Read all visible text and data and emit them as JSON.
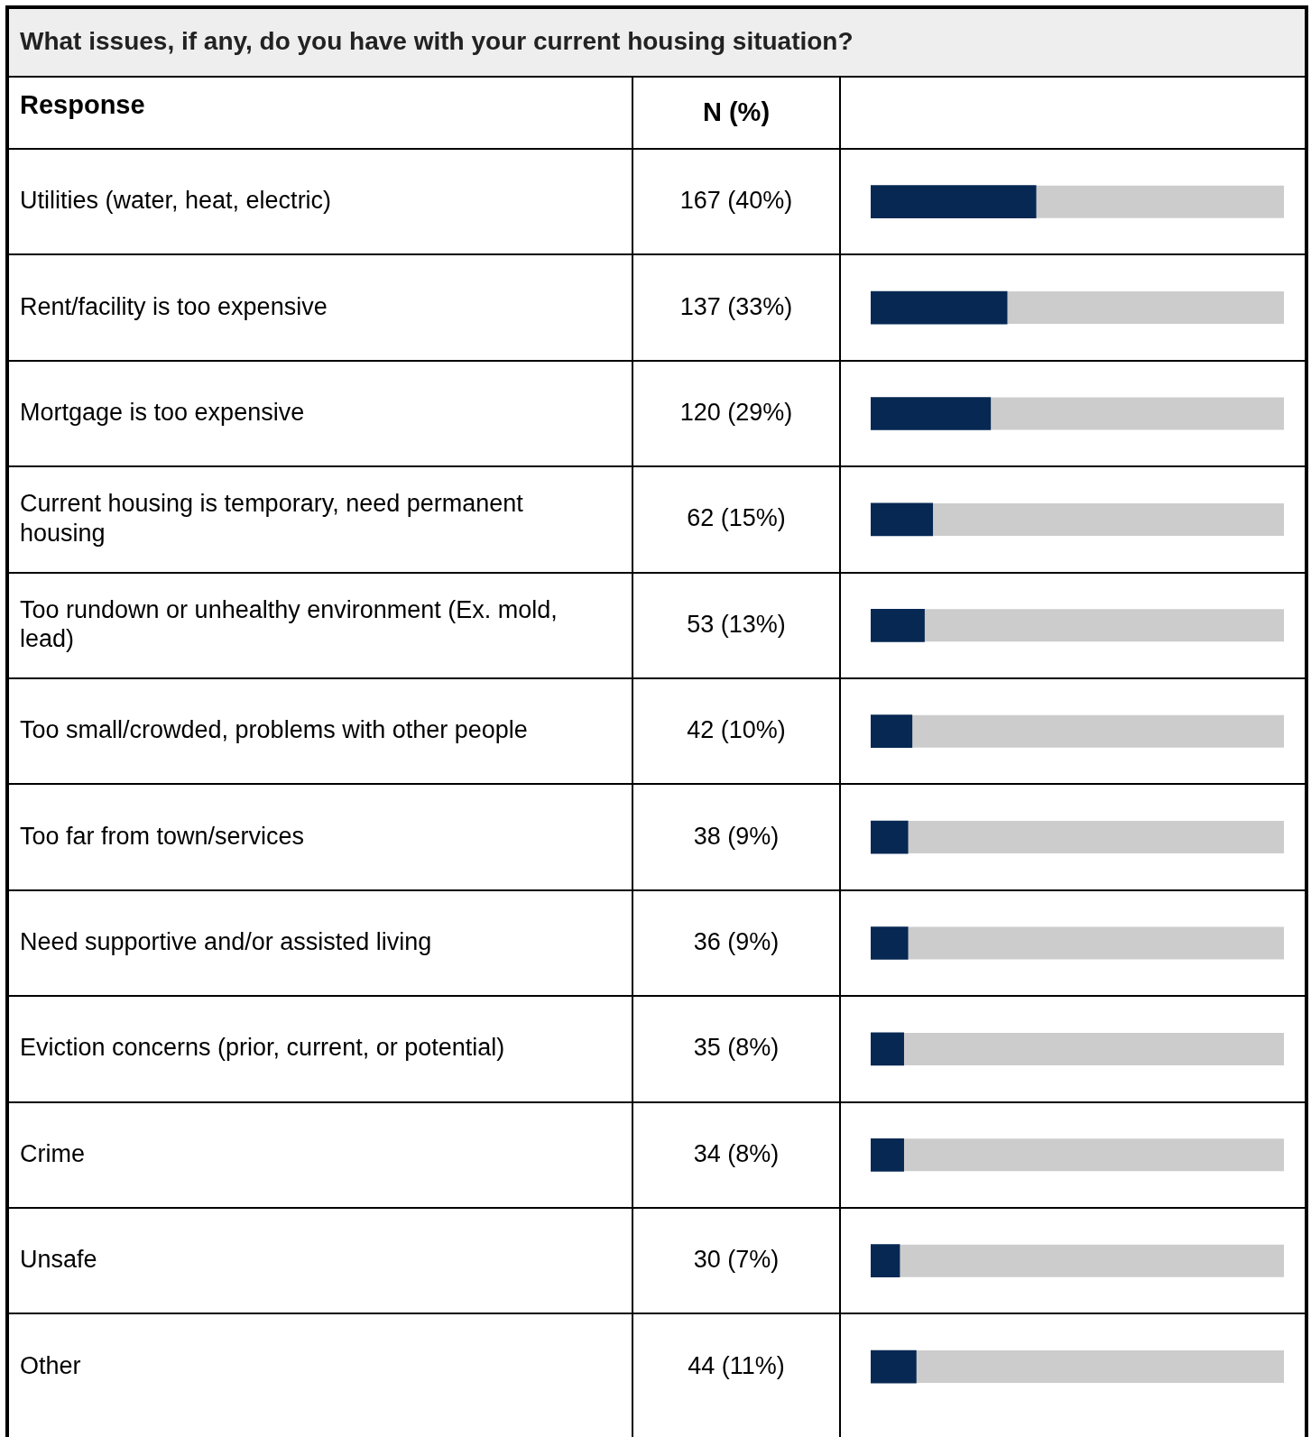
{
  "chart_data": {
    "type": "bar",
    "orientation": "horizontal",
    "title": "What issues, if any, do you have with your current housing situation?",
    "ylabel": "Response",
    "annotations": [
      "N (%)"
    ],
    "categories": [
      "Utilities (water, heat, electric)",
      "Rent/facility is too expensive",
      "Mortgage is too expensive",
      "Current housing is temporary, need permanent housing",
      "Too rundown or unhealthy environment (Ex. mold, lead)",
      "Too small/crowded, problems with other people",
      "Too far from town/services",
      "Need supportive and/or assisted living",
      "Eviction concerns (prior, current, or potential)",
      "Crime",
      "Unsafe",
      "Other"
    ],
    "values": [
      40,
      33,
      29,
      15,
      13,
      10,
      9,
      9,
      8,
      8,
      7,
      11
    ],
    "value_labels": [
      "167 (40%)",
      "137 (33%)",
      "120 (29%)",
      "62 (15%)",
      "53 (13%)",
      "42 (10%)",
      "38 (9%)",
      "36 (9%)",
      "35 (8%)",
      "34 (8%)",
      "30 (7%)",
      "44 (11%)"
    ],
    "color": "#062853",
    "xlim": [
      0,
      100
    ],
    "tick_labels": "y",
    "legend": false
  }
}
